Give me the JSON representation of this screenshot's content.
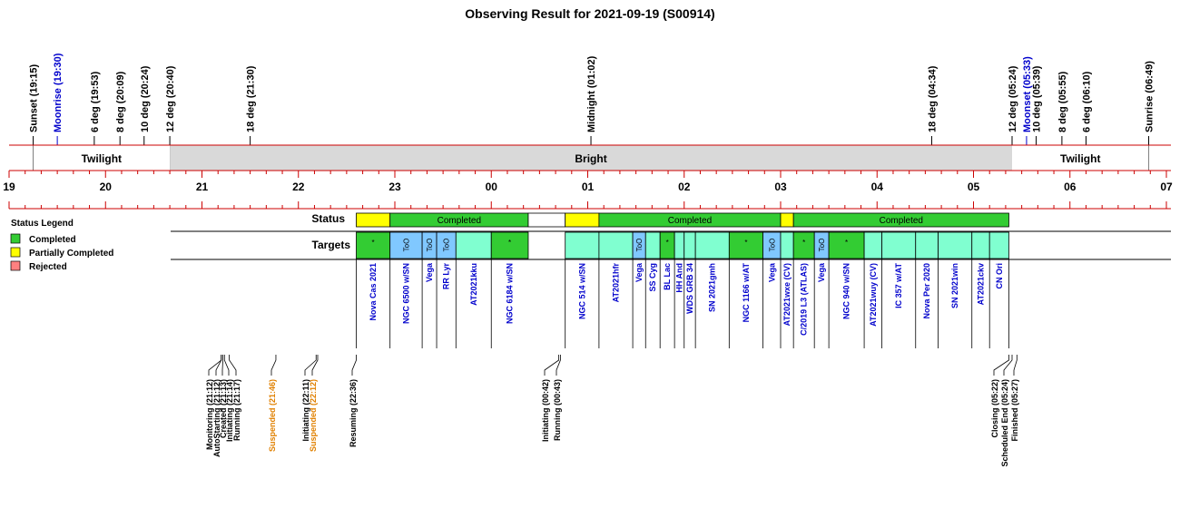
{
  "title": "Observing Result for 2021-09-19 (S00914)",
  "colors": {
    "completed": "#33cc33",
    "partial": "#ffff00",
    "rejected": "#ff8080",
    "target_fill": "#80ffd0",
    "too_fill": "#80c8ff",
    "bright_fill": "#d9d9d9",
    "line_red": "#cc0000",
    "event_blue": "#0000cc",
    "status_orange": "#e08000"
  },
  "chart_data": {
    "type": "timeline",
    "date": "2021-09-19",
    "time_axis": {
      "start": "19:00",
      "end": "07:00",
      "ticks": [
        "19",
        "20",
        "21",
        "22",
        "23",
        "00",
        "01",
        "02",
        "03",
        "04",
        "05",
        "06",
        "07"
      ]
    },
    "events": [
      {
        "label": "Sunset (19:15)",
        "time": "19:15",
        "color": "black"
      },
      {
        "label": "Moonrise (19:30)",
        "time": "19:30",
        "color": "blue"
      },
      {
        "label": "6 deg (19:53)",
        "time": "19:53",
        "color": "black"
      },
      {
        "label": "8 deg (20:09)",
        "time": "20:09",
        "color": "black"
      },
      {
        "label": "10 deg (20:24)",
        "time": "20:24",
        "color": "black"
      },
      {
        "label": "12 deg (20:40)",
        "time": "20:40",
        "color": "black"
      },
      {
        "label": "18 deg (21:30)",
        "time": "21:30",
        "color": "black"
      },
      {
        "label": "Midnight (01:02)",
        "time": "01:02",
        "color": "black"
      },
      {
        "label": "18 deg (04:34)",
        "time": "04:34",
        "color": "black"
      },
      {
        "label": "12 deg (05:24)",
        "time": "05:24",
        "color": "black"
      },
      {
        "label": "Moonset (05:33)",
        "time": "05:33",
        "color": "blue"
      },
      {
        "label": "10 deg (05:39)",
        "time": "05:39",
        "color": "black"
      },
      {
        "label": "8 deg (05:55)",
        "time": "05:55",
        "color": "black"
      },
      {
        "label": "6 deg (06:10)",
        "time": "06:10",
        "color": "black"
      },
      {
        "label": "Sunrise (06:49)",
        "time": "06:49",
        "color": "black"
      }
    ],
    "sky_bands": [
      {
        "label": "Twilight",
        "start": "19:15",
        "end": "20:40",
        "style": "white"
      },
      {
        "label": "Bright",
        "start": "20:40",
        "end": "05:24",
        "style": "gray"
      },
      {
        "label": "Twilight",
        "start": "05:24",
        "end": "06:49",
        "style": "white"
      }
    ],
    "rows": {
      "status_label": "Status",
      "targets_label": "Targets"
    },
    "legend": {
      "title": "Status Legend",
      "items": [
        {
          "label": "Completed",
          "color": "#33cc33"
        },
        {
          "label": "Partially Completed",
          "color": "#ffff00"
        },
        {
          "label": "Rejected",
          "color": "#ff8080"
        }
      ]
    },
    "status_segments": [
      {
        "start": "22:36",
        "end": "22:57",
        "status": "partial",
        "label": ""
      },
      {
        "start": "22:57",
        "end": "00:23",
        "status": "completed",
        "label": "Completed"
      },
      {
        "start": "00:23",
        "end": "00:46",
        "status": "none",
        "label": ""
      },
      {
        "start": "00:46",
        "end": "01:07",
        "status": "partial",
        "label": ""
      },
      {
        "start": "01:07",
        "end": "03:00",
        "status": "completed",
        "label": "Completed"
      },
      {
        "start": "03:00",
        "end": "03:08",
        "status": "partial",
        "label": ""
      },
      {
        "start": "03:08",
        "end": "05:22",
        "status": "completed",
        "label": "Completed"
      }
    ],
    "targets": [
      {
        "name": "Nova Cas 2021",
        "start": "22:36",
        "end": "22:57",
        "kind": "partial",
        "mark": "*"
      },
      {
        "name": "NGC 6500 w/SN",
        "start": "22:57",
        "end": "23:17",
        "kind": "too",
        "mark": "ToO"
      },
      {
        "name": "Vega",
        "start": "23:17",
        "end": "23:26",
        "kind": "too",
        "mark": "ToO"
      },
      {
        "name": "RR Lyr",
        "start": "23:26",
        "end": "23:38",
        "kind": "too",
        "mark": "ToO"
      },
      {
        "name": "AT2021kku",
        "start": "23:38",
        "end": "00:00",
        "kind": "target",
        "mark": ""
      },
      {
        "name": "NGC 6184 w/SN",
        "start": "00:00",
        "end": "00:23",
        "kind": "partial",
        "mark": "*"
      },
      {
        "name": "NGC 514 w/SN",
        "start": "00:46",
        "end": "01:07",
        "kind": "target",
        "mark": ""
      },
      {
        "name": "AT2021hfr",
        "start": "01:07",
        "end": "01:28",
        "kind": "target",
        "mark": ""
      },
      {
        "name": "Vega",
        "start": "01:28",
        "end": "01:36",
        "kind": "too",
        "mark": "ToO"
      },
      {
        "name": "SS Cyg",
        "start": "01:36",
        "end": "01:45",
        "kind": "target",
        "mark": ""
      },
      {
        "name": "BL Lac",
        "start": "01:45",
        "end": "01:54",
        "kind": "partial",
        "mark": "*"
      },
      {
        "name": "HH And",
        "start": "01:54",
        "end": "02:00",
        "kind": "target",
        "mark": ""
      },
      {
        "name": "WDS GRB 34",
        "start": "02:00",
        "end": "02:07",
        "kind": "target",
        "mark": ""
      },
      {
        "name": "SN 2021gmh",
        "start": "02:07",
        "end": "02:28",
        "kind": "target",
        "mark": ""
      },
      {
        "name": "NGC 1166 w/AT",
        "start": "02:28",
        "end": "02:49",
        "kind": "partial",
        "mark": "*"
      },
      {
        "name": "Vega",
        "start": "02:49",
        "end": "03:00",
        "kind": "too",
        "mark": "ToO"
      },
      {
        "name": "AT2021wxe (CV)",
        "start": "03:00",
        "end": "03:08",
        "kind": "target",
        "mark": ""
      },
      {
        "name": "C/2019 L3 (ATLAS)",
        "start": "03:08",
        "end": "03:21",
        "kind": "partial",
        "mark": "*"
      },
      {
        "name": "Vega",
        "start": "03:21",
        "end": "03:30",
        "kind": "too",
        "mark": "ToO"
      },
      {
        "name": "NGC 940 w/SN",
        "start": "03:30",
        "end": "03:52",
        "kind": "partial",
        "mark": "*"
      },
      {
        "name": "AT2021wuy (CV)",
        "start": "03:52",
        "end": "04:03",
        "kind": "target",
        "mark": ""
      },
      {
        "name": "IC 357 w/AT",
        "start": "04:03",
        "end": "04:24",
        "kind": "target",
        "mark": ""
      },
      {
        "name": "Nova Per 2020",
        "start": "04:24",
        "end": "04:38",
        "kind": "target",
        "mark": ""
      },
      {
        "name": "SN 2021win",
        "start": "04:38",
        "end": "04:59",
        "kind": "target",
        "mark": ""
      },
      {
        "name": "AT2021ckv",
        "start": "04:59",
        "end": "05:10",
        "kind": "target",
        "mark": ""
      },
      {
        "name": "CN Ori",
        "start": "05:10",
        "end": "05:22",
        "kind": "target",
        "mark": ""
      }
    ],
    "status_log": [
      {
        "label": "Monitoring (21:12)",
        "time": "21:12",
        "color": "black"
      },
      {
        "label": "AutoStarting (21:12)",
        "time": "21:12",
        "color": "black"
      },
      {
        "label": "Created (21:13)",
        "time": "21:13",
        "color": "black"
      },
      {
        "label": "Initiating (21:14)",
        "time": "21:14",
        "color": "black"
      },
      {
        "label": "Running (21:17)",
        "time": "21:17",
        "color": "black"
      },
      {
        "label": "Suspended (21:46)",
        "time": "21:46",
        "color": "orange"
      },
      {
        "label": "Initiating (22:11)",
        "time": "22:11",
        "color": "black"
      },
      {
        "label": "Suspended (22:12)",
        "time": "22:12",
        "color": "orange"
      },
      {
        "label": "Resuming (22:36)",
        "time": "22:36",
        "color": "black"
      },
      {
        "label": "Initiating (00:42)",
        "time": "00:42",
        "color": "black"
      },
      {
        "label": "Running (00:43)",
        "time": "00:43",
        "color": "black"
      },
      {
        "label": "Closing (05:22)",
        "time": "05:22",
        "color": "black"
      },
      {
        "label": "Scheduled End (05:24)",
        "time": "05:24",
        "color": "black"
      },
      {
        "label": "Finished (05:27)",
        "time": "05:27",
        "color": "black"
      }
    ]
  }
}
